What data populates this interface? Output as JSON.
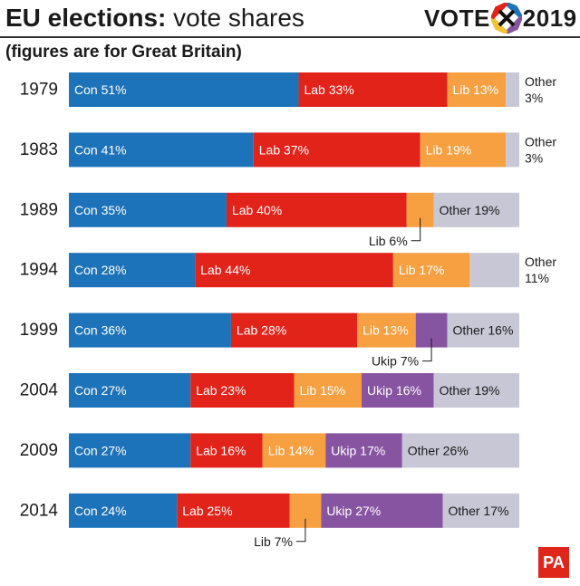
{
  "title": {
    "bold": "EU elections:",
    "rest": " vote shares"
  },
  "subtitle": "(figures are for Great Britain)",
  "logo": {
    "left": "VOTE",
    "right": "2019"
  },
  "credit": "PA",
  "colors": {
    "Con": "#1d73b9",
    "Lab": "#e2231a",
    "Lib": "#f7a041",
    "Ukip": "#8754a1",
    "Other": "#c8c7d6"
  },
  "chart_data": {
    "type": "bar",
    "orientation": "horizontal-stacked",
    "title": "EU elections: vote shares",
    "subtitle": "(figures are for Great Britain)",
    "categories": [
      "1979",
      "1983",
      "1989",
      "1994",
      "1999",
      "2004",
      "2009",
      "2014"
    ],
    "series": [
      {
        "name": "Con",
        "values": [
          51,
          41,
          35,
          28,
          36,
          27,
          27,
          24
        ]
      },
      {
        "name": "Lab",
        "values": [
          33,
          37,
          40,
          44,
          28,
          23,
          16,
          25
        ]
      },
      {
        "name": "Lib",
        "values": [
          13,
          19,
          6,
          17,
          13,
          15,
          14,
          7
        ]
      },
      {
        "name": "Ukip",
        "values": [
          0,
          0,
          0,
          0,
          7,
          16,
          17,
          27
        ]
      },
      {
        "name": "Other",
        "values": [
          3,
          3,
          19,
          11,
          16,
          19,
          26,
          17
        ]
      }
    ],
    "labels": [
      [
        "Con 51%",
        "Lab 33%",
        "Lib 13%",
        "",
        "Other 3%"
      ],
      [
        "Con 41%",
        "Lab 37%",
        "Lib 19%",
        "",
        "Other 3%"
      ],
      [
        "Con 35%",
        "Lab 40%",
        "Lib 6%",
        "",
        "Other 19%"
      ],
      [
        "Con 28%",
        "Lab 44%",
        "Lib 17%",
        "",
        "Other 11%"
      ],
      [
        "Con 36%",
        "Lab 28%",
        "Lib 13%",
        "Ukip 7%",
        "Other 16%"
      ],
      [
        "Con 27%",
        "Lab 23%",
        "Lib 15%",
        "Ukip 16%",
        "Other 19%"
      ],
      [
        "Con 27%",
        "Lab 16%",
        "Lib 14%",
        "Ukip 17%",
        "Other 26%"
      ],
      [
        "Con 24%",
        "Lab 25%",
        "Lib 7%",
        "Ukip 27%",
        "Other 17%"
      ]
    ],
    "xlim": [
      0,
      100
    ],
    "xlabel": "",
    "ylabel": "",
    "grid": false,
    "legend": "none"
  }
}
